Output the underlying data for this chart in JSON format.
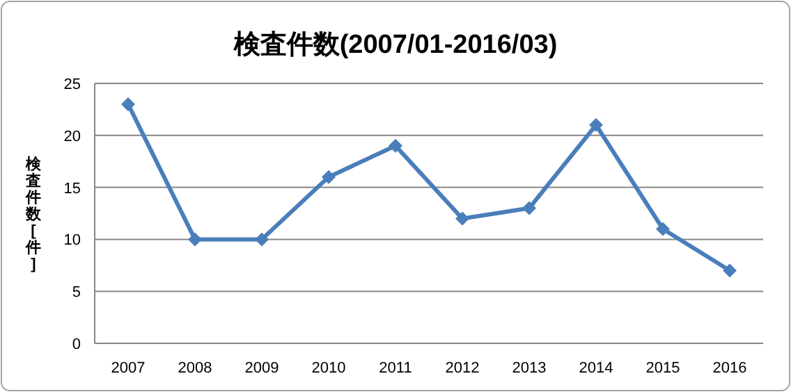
{
  "chart_data": {
    "type": "line",
    "title": "検査件数(2007/01-2016/03)",
    "ylabel": "検査件数[件]",
    "categories": [
      "2007",
      "2008",
      "2009",
      "2010",
      "2011",
      "2012",
      "2013",
      "2014",
      "2015",
      "2016"
    ],
    "series": [
      {
        "color": "#4a7ebb",
        "values": [
          23,
          10,
          10,
          16,
          19,
          12,
          13,
          21,
          11,
          7
        ]
      }
    ],
    "ylim": [
      0,
      25
    ],
    "yticks": [
      0,
      5,
      10,
      15,
      20,
      25
    ],
    "grid": "y",
    "marker": "diamond",
    "line_style": "solid"
  }
}
